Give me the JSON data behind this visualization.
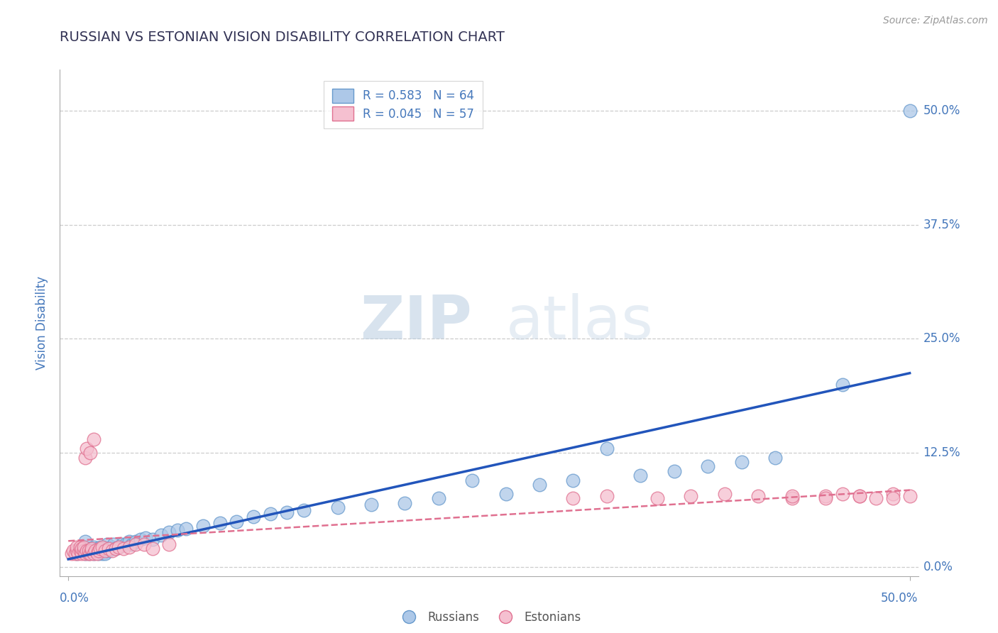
{
  "title": "RUSSIAN VS ESTONIAN VISION DISABILITY CORRELATION CHART",
  "source": "Source: ZipAtlas.com",
  "ylabel": "Vision Disability",
  "ytick_labels": [
    "0.0%",
    "12.5%",
    "25.0%",
    "37.5%",
    "50.0%"
  ],
  "ytick_values": [
    0.0,
    0.125,
    0.25,
    0.375,
    0.5
  ],
  "xlim": [
    -0.005,
    0.505
  ],
  "ylim": [
    -0.01,
    0.545
  ],
  "legend_r_russian": "R = 0.583",
  "legend_n_russian": "N = 64",
  "legend_r_estonian": "R = 0.045",
  "legend_n_estonian": "N = 57",
  "russian_color": "#adc8e8",
  "russian_edge_color": "#6699cc",
  "estonian_color": "#f5c0d0",
  "estonian_edge_color": "#e07090",
  "russian_line_color": "#2255bb",
  "estonian_line_color": "#e07090",
  "watermark_zip": "ZIP",
  "watermark_atlas": "atlas",
  "grid_color": "#cccccc",
  "title_color": "#333355",
  "axis_label_color": "#4477bb",
  "tick_label_color": "#4477bb",
  "russians_x": [
    0.005,
    0.007,
    0.008,
    0.009,
    0.01,
    0.01,
    0.01,
    0.012,
    0.013,
    0.014,
    0.015,
    0.015,
    0.016,
    0.017,
    0.018,
    0.018,
    0.019,
    0.02,
    0.02,
    0.021,
    0.022,
    0.022,
    0.023,
    0.024,
    0.025,
    0.026,
    0.027,
    0.028,
    0.03,
    0.032,
    0.034,
    0.036,
    0.038,
    0.04,
    0.043,
    0.046,
    0.05,
    0.055,
    0.06,
    0.065,
    0.07,
    0.08,
    0.09,
    0.1,
    0.11,
    0.12,
    0.13,
    0.14,
    0.16,
    0.18,
    0.2,
    0.22,
    0.24,
    0.26,
    0.28,
    0.3,
    0.32,
    0.34,
    0.36,
    0.38,
    0.4,
    0.42,
    0.46,
    0.5
  ],
  "russians_y": [
    0.015,
    0.018,
    0.02,
    0.022,
    0.015,
    0.022,
    0.028,
    0.015,
    0.018,
    0.02,
    0.015,
    0.022,
    0.018,
    0.02,
    0.015,
    0.018,
    0.022,
    0.015,
    0.02,
    0.022,
    0.015,
    0.02,
    0.025,
    0.018,
    0.02,
    0.022,
    0.025,
    0.02,
    0.022,
    0.025,
    0.025,
    0.028,
    0.025,
    0.028,
    0.03,
    0.032,
    0.03,
    0.035,
    0.038,
    0.04,
    0.042,
    0.045,
    0.048,
    0.05,
    0.055,
    0.058,
    0.06,
    0.062,
    0.065,
    0.068,
    0.07,
    0.075,
    0.095,
    0.08,
    0.09,
    0.095,
    0.13,
    0.1,
    0.105,
    0.11,
    0.115,
    0.12,
    0.2,
    0.5
  ],
  "estonians_x": [
    0.002,
    0.003,
    0.004,
    0.005,
    0.005,
    0.006,
    0.007,
    0.007,
    0.008,
    0.008,
    0.009,
    0.009,
    0.01,
    0.01,
    0.011,
    0.011,
    0.012,
    0.012,
    0.013,
    0.013,
    0.014,
    0.014,
    0.015,
    0.015,
    0.016,
    0.017,
    0.018,
    0.019,
    0.02,
    0.022,
    0.024,
    0.026,
    0.028,
    0.03,
    0.033,
    0.036,
    0.04,
    0.045,
    0.05,
    0.06,
    0.3,
    0.32,
    0.35,
    0.37,
    0.39,
    0.41,
    0.43,
    0.45,
    0.46,
    0.47,
    0.48,
    0.49,
    0.5,
    0.49,
    0.47,
    0.45,
    0.43
  ],
  "estonians_y": [
    0.015,
    0.018,
    0.015,
    0.018,
    0.022,
    0.015,
    0.018,
    0.022,
    0.015,
    0.02,
    0.018,
    0.022,
    0.015,
    0.12,
    0.018,
    0.13,
    0.015,
    0.018,
    0.015,
    0.125,
    0.018,
    0.02,
    0.015,
    0.14,
    0.018,
    0.015,
    0.018,
    0.02,
    0.022,
    0.018,
    0.02,
    0.018,
    0.02,
    0.022,
    0.02,
    0.022,
    0.025,
    0.025,
    0.02,
    0.025,
    0.075,
    0.078,
    0.075,
    0.078,
    0.08,
    0.078,
    0.075,
    0.078,
    0.08,
    0.078,
    0.075,
    0.08,
    0.078,
    0.075,
    0.078,
    0.075,
    0.078
  ]
}
